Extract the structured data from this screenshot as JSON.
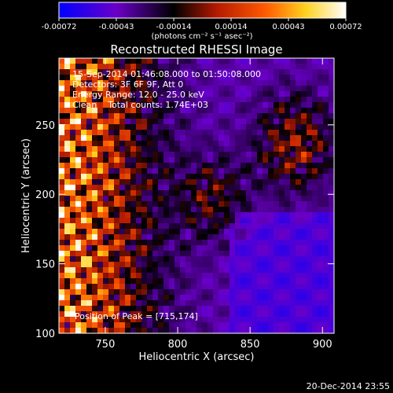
{
  "colorbar": {
    "tick_labels": [
      "-0.00072",
      "-0.00043",
      "-0.00014",
      "0.00014",
      "0.00043",
      "0.00072"
    ],
    "range": [
      -0.00072,
      0.00072
    ],
    "colors": [
      "#0000ff",
      "#6a00c8",
      "#000000",
      "#b41a00",
      "#ff5a00",
      "#ffd21e",
      "#ffffff"
    ]
  },
  "chart_data": {
    "type": "heatmap",
    "title": "Reconstructed RHESSI Image",
    "xlabel": "Heliocentric X (arcsec)",
    "ylabel": "Heliocentric Y (arcsec)",
    "xlim": [
      718,
      908
    ],
    "ylim": [
      100,
      298
    ],
    "xticks": [
      750,
      800,
      850,
      900
    ],
    "yticks": [
      100,
      150,
      200,
      250
    ],
    "colorbar_unit": "(photons cm⁻² s⁻¹ asec⁻²)",
    "peak": [
      715,
      174
    ],
    "annotations": [
      "15-Sep-2014 01:46:08.000 to 01:50:08.000",
      "Detectors: 3F 6F 9F, Att 0",
      "Energy Range: 12.0 - 25.0 keV",
      "Clean    Total counts: 1.74E+03"
    ],
    "peak_label": "Position of Peak = [715,174]"
  },
  "footer": {
    "timestamp": "20-Dec-2014 23:55"
  }
}
